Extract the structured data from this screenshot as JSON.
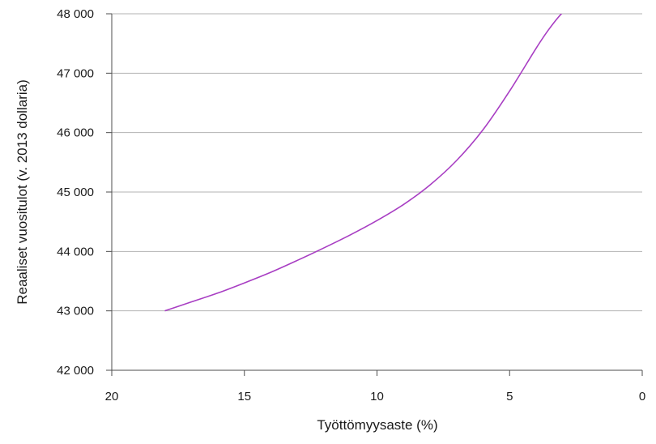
{
  "chart_data": {
    "type": "line",
    "title": "",
    "xlabel": "Työttömyysaste (%)",
    "ylabel": "Reaaliset vuositulot (v. 2013 dollaria)",
    "xlim": [
      20,
      0
    ],
    "ylim": [
      42000,
      48000
    ],
    "x_reversed": true,
    "x_ticks": [
      20,
      15,
      10,
      5,
      0
    ],
    "x_tick_labels": [
      "20",
      "15",
      "10",
      "5",
      "0"
    ],
    "y_ticks": [
      42000,
      43000,
      44000,
      45000,
      46000,
      47000,
      48000
    ],
    "y_tick_labels": [
      "42 000",
      "43 000",
      "44 000",
      "45 000",
      "46 000",
      "47 000",
      "48 000"
    ],
    "grid": "horizontal",
    "colors": {
      "series": "#a83ec3",
      "grid": "#b3b3b3",
      "axis": "#4d4d4d"
    },
    "series": [
      {
        "x": [
          18,
          17,
          16,
          15,
          14,
          13,
          12,
          11,
          10,
          9,
          8,
          7,
          6,
          5,
          4,
          3.5,
          3,
          2.5,
          2
        ],
        "values": [
          43000,
          43150,
          43300,
          43470,
          43650,
          43850,
          44060,
          44280,
          44520,
          44790,
          45120,
          45530,
          46050,
          46700,
          47420,
          47750,
          48020,
          48170,
          48300
        ]
      }
    ]
  }
}
